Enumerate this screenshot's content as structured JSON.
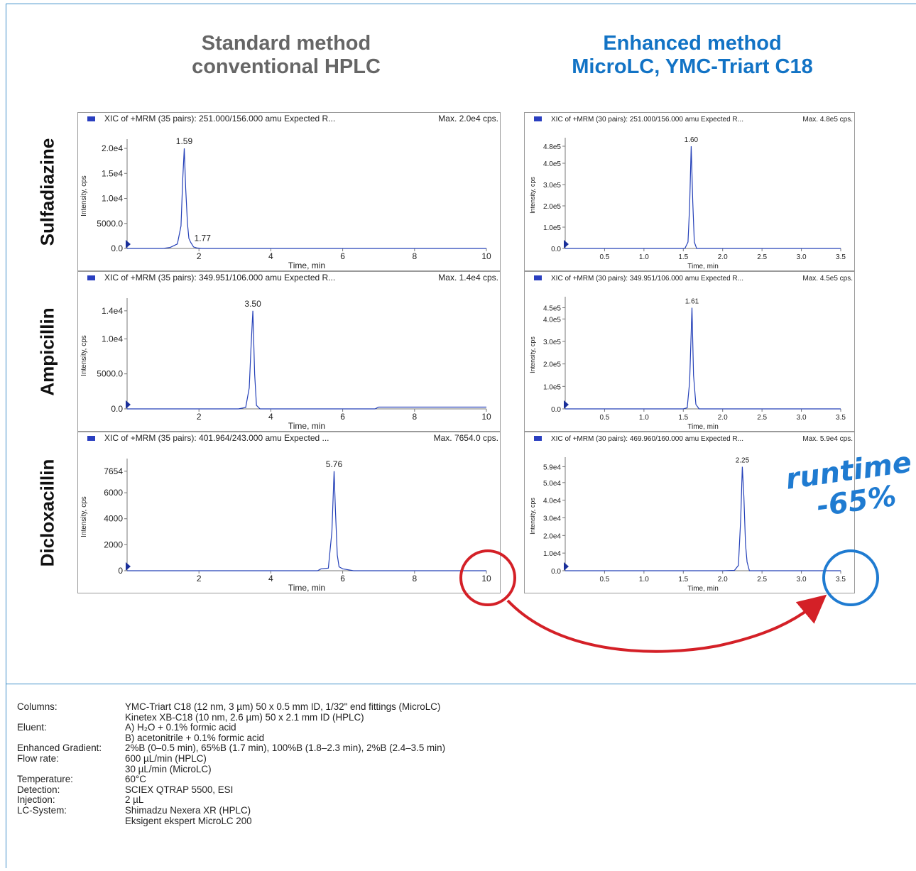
{
  "headings": {
    "standard": [
      "Standard method",
      "conventional HPLC"
    ],
    "enhanced": [
      "Enhanced method",
      "MicroLC, YMC-Triart C18"
    ]
  },
  "row_labels": [
    "Sulfadiazine",
    "Ampicillin",
    "Dicloxacillin"
  ],
  "annotation": {
    "line1": "runtime",
    "line2": "-65%",
    "arrow_color": "#d42027",
    "circle_left_color": "#d42027",
    "circle_right_color": "#1f7bd1"
  },
  "colors": {
    "trace": "#2440b8",
    "frame_blue": "#3f8fc9",
    "heading_grey": "#666666",
    "heading_blue": "#1273c5"
  },
  "chart_data": [
    {
      "type": "line",
      "panel": "standard",
      "compound": "Sulfadiazine",
      "header": "XIC of +MRM (35 pairs): 251.000/156.000 amu Expected R...",
      "max_label": "Max. 2.0e4 cps.",
      "xlabel": "Time, min",
      "ylabel": "Intensity, cps",
      "xlim": [
        0,
        10
      ],
      "ylim": [
        0,
        21000
      ],
      "xticks": [
        2,
        4,
        6,
        8,
        10
      ],
      "xtick_labels": [
        "2",
        "4",
        "6",
        "8",
        "10"
      ],
      "yticks": [
        0,
        5000,
        10000,
        15000,
        20000
      ],
      "ytick_labels": [
        "0.0",
        "5000.0",
        "1.0e4",
        "1.5e4",
        "2.0e4"
      ],
      "x": [
        0.0,
        1.0,
        1.2,
        1.4,
        1.5,
        1.55,
        1.59,
        1.63,
        1.68,
        1.72,
        1.77,
        1.85,
        1.95,
        2.1,
        2.5,
        5.0,
        10.0
      ],
      "y": [
        0,
        0,
        200,
        900,
        4500,
        14000,
        20000,
        12000,
        5000,
        2000,
        1200,
        300,
        80,
        0,
        0,
        0,
        0
      ],
      "peak_labels": [
        {
          "x": 1.59,
          "y": 20000,
          "text": "1.59"
        },
        {
          "x": 1.77,
          "y": 1200,
          "text": "1.77"
        }
      ]
    },
    {
      "type": "line",
      "panel": "enhanced",
      "compound": "Sulfadiazine",
      "header": "XIC of +MRM (30 pairs): 251.000/156.000 amu Expected R...",
      "max_label": "Max. 4.8e5 cps.",
      "xlabel": "Time, min",
      "ylabel": "Intensity, cps",
      "xlim": [
        0,
        3.5
      ],
      "ylim": [
        0,
        500000
      ],
      "xticks": [
        0.5,
        1.0,
        1.5,
        2.0,
        2.5,
        3.0,
        3.5
      ],
      "xtick_labels": [
        "0.5",
        "1.0",
        "1.5",
        "2.0",
        "2.5",
        "3.0",
        "3.5"
      ],
      "yticks": [
        0,
        100000,
        200000,
        300000,
        400000,
        480000
      ],
      "ytick_labels": [
        "0.0",
        "1.0e5",
        "2.0e5",
        "3.0e5",
        "4.0e5",
        "4.8e5"
      ],
      "x": [
        0.0,
        1.4,
        1.52,
        1.56,
        1.58,
        1.6,
        1.62,
        1.64,
        1.67,
        3.5
      ],
      "y": [
        0,
        0,
        0,
        30000,
        200000,
        480000,
        220000,
        30000,
        0,
        0
      ],
      "peak_labels": [
        {
          "x": 1.6,
          "y": 480000,
          "text": "1.60"
        }
      ]
    },
    {
      "type": "line",
      "panel": "standard",
      "compound": "Ampicillin",
      "header": "XIC of +MRM (35 pairs): 349.951/106.000 amu Expected R...",
      "max_label": "Max. 1.4e4 cps.",
      "xlabel": "Time, min",
      "ylabel": "Intensity, cps",
      "xlim": [
        0,
        10
      ],
      "ylim": [
        0,
        15200
      ],
      "xticks": [
        2,
        4,
        6,
        8,
        10
      ],
      "xtick_labels": [
        "2",
        "4",
        "6",
        "8",
        "10"
      ],
      "yticks": [
        0,
        5000,
        10000,
        14000
      ],
      "ytick_labels": [
        "0.0",
        "5000.0",
        "1.0e4",
        "1.4e4"
      ],
      "x": [
        0.0,
        3.1,
        3.3,
        3.4,
        3.45,
        3.5,
        3.55,
        3.6,
        3.7,
        6.9,
        7.0,
        10.0
      ],
      "y": [
        0,
        0,
        200,
        3000,
        9000,
        14000,
        5000,
        500,
        0,
        0,
        250,
        250
      ],
      "peak_labels": [
        {
          "x": 3.5,
          "y": 14000,
          "text": "3.50"
        }
      ]
    },
    {
      "type": "line",
      "panel": "enhanced",
      "compound": "Ampicillin",
      "header": "XIC of +MRM (30 pairs): 349.951/106.000 amu Expected R...",
      "max_label": "Max. 4.5e5 cps.",
      "xlabel": "Time, min",
      "ylabel": "Intensity, cps",
      "xlim": [
        0,
        3.5
      ],
      "ylim": [
        0,
        480000
      ],
      "xticks": [
        0.5,
        1.0,
        1.5,
        2.0,
        2.5,
        3.0,
        3.5
      ],
      "xtick_labels": [
        "0.5",
        "1.0",
        "1.5",
        "2.0",
        "2.5",
        "3.0",
        "3.5"
      ],
      "yticks": [
        0,
        100000,
        200000,
        300000,
        400000,
        450000
      ],
      "ytick_labels": [
        "0.0",
        "1.0e5",
        "2.0e5",
        "3.0e5",
        "4.0e5",
        "4.5e5"
      ],
      "x": [
        0.0,
        1.5,
        1.55,
        1.58,
        1.61,
        1.63,
        1.66,
        1.7,
        3.5
      ],
      "y": [
        0,
        0,
        5000,
        120000,
        450000,
        150000,
        20000,
        0,
        0
      ],
      "peak_labels": [
        {
          "x": 1.61,
          "y": 450000,
          "text": "1.61"
        }
      ]
    },
    {
      "type": "line",
      "panel": "standard",
      "compound": "Dicloxacillin",
      "header": "XIC of +MRM (35 pairs): 401.964/243.000 amu Expected ...",
      "max_label": "Max. 7654.0 cps.",
      "xlabel": "Time, min",
      "ylabel": "Intensity, cps",
      "xlim": [
        0,
        10
      ],
      "ylim": [
        0,
        8300
      ],
      "xticks": [
        2,
        4,
        6,
        8,
        10
      ],
      "xtick_labels": [
        "2",
        "4",
        "6",
        "8",
        "10"
      ],
      "yticks": [
        0,
        2000,
        4000,
        6000,
        7654
      ],
      "ytick_labels": [
        "0",
        "2000",
        "4000",
        "6000",
        "7654"
      ],
      "x": [
        0.0,
        5.3,
        5.4,
        5.6,
        5.7,
        5.76,
        5.8,
        5.85,
        5.9,
        6.0,
        6.3,
        10.0
      ],
      "y": [
        0,
        0,
        150,
        200,
        3000,
        7654,
        4500,
        1200,
        300,
        150,
        0,
        0
      ],
      "peak_labels": [
        {
          "x": 5.76,
          "y": 7654,
          "text": "5.76"
        }
      ]
    },
    {
      "type": "line",
      "panel": "enhanced",
      "compound": "Dicloxacillin",
      "header": "XIC of +MRM (30 pairs): 469.960/160.000 amu Expected R...",
      "max_label": "Max. 5.9e4 cps.",
      "xlabel": "Time, min",
      "ylabel": "Intensity, cps",
      "xlim": [
        0,
        3.5
      ],
      "ylim": [
        0,
        62000
      ],
      "xticks": [
        0.5,
        1.0,
        1.5,
        2.0,
        2.5,
        3.0,
        3.5
      ],
      "xtick_labels": [
        "0.5",
        "1.0",
        "1.5",
        "2.0",
        "2.5",
        "3.0",
        "3.5"
      ],
      "yticks": [
        0,
        10000,
        20000,
        30000,
        40000,
        50000,
        59000
      ],
      "ytick_labels": [
        "0.0",
        "1.0e4",
        "2.0e4",
        "3.0e4",
        "4.0e4",
        "5.0e4",
        "5.9e4"
      ],
      "x": [
        0.0,
        2.0,
        2.15,
        2.2,
        2.23,
        2.25,
        2.27,
        2.29,
        2.31,
        2.34,
        3.5
      ],
      "y": [
        0,
        0,
        200,
        3000,
        30000,
        59000,
        42000,
        15000,
        5000,
        0,
        0
      ],
      "peak_labels": [
        {
          "x": 2.25,
          "y": 59000,
          "text": "2.25"
        }
      ]
    }
  ],
  "conditions": [
    {
      "label": "Columns:",
      "lines": [
        "YMC-Triart C18 (12 nm, 3 µm) 50 x 0.5 mm ID, 1/32\" end fittings (MicroLC)",
        "Kinetex XB-C18 (10 nm, 2.6 µm) 50 x 2.1 mm ID (HPLC)"
      ]
    },
    {
      "label": "Eluent:",
      "lines": [
        "A) H₂O + 0.1% formic acid",
        "B) acetonitrile + 0.1% formic acid"
      ]
    },
    {
      "label": "Enhanced Gradient:",
      "lines": [
        "2%B (0–0.5 min), 65%B (1.7 min), 100%B (1.8–2.3 min), 2%B (2.4–3.5 min)"
      ]
    },
    {
      "label": "Flow rate:",
      "lines": [
        "600 µL/min (HPLC)",
        "30 µL/min (MicroLC)"
      ]
    },
    {
      "label": "Temperature:",
      "lines": [
        "60°C"
      ]
    },
    {
      "label": "Detection:",
      "lines": [
        "SCIEX QTRAP 5500, ESI"
      ]
    },
    {
      "label": "Injection:",
      "lines": [
        "2 µL"
      ]
    },
    {
      "label": "LC-System:",
      "lines": [
        "Shimadzu Nexera XR (HPLC)",
        "Eksigent ekspert MicroLC 200"
      ]
    }
  ]
}
